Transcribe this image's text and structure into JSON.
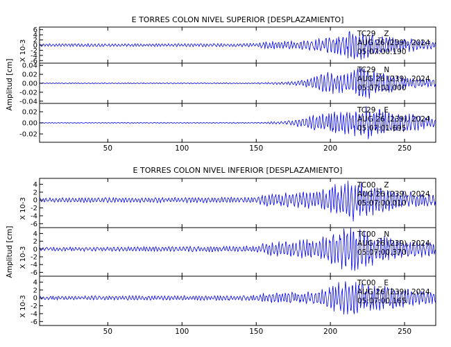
{
  "chart_data": [
    {
      "type": "line",
      "title": "E TORRES COLON NIVEL SUPERIOR [DESPLAZAMIENTO]",
      "ylabel": "Amplitud [cm]",
      "xlim": [
        4,
        271
      ],
      "xticks": [
        50,
        100,
        150,
        200,
        250
      ],
      "series_color": "#0000ee",
      "panels": [
        {
          "y_multiplier": "X 10-3",
          "ylim": [
            -7,
            7
          ],
          "yticks": [
            6,
            4,
            2,
            0,
            -2,
            -4,
            -6
          ],
          "ytick_labels": [
            "6",
            "4",
            "2",
            "0",
            "-2",
            "-4",
            "-6"
          ],
          "channel": "TC29 _ Z",
          "date": "AUG 26 (239), 2024",
          "time": "05:07:00.190",
          "envelope": [
            {
              "x": 4,
              "amp": 0.6
            },
            {
              "x": 100,
              "amp": 0.6
            },
            {
              "x": 150,
              "amp": 0.7
            },
            {
              "x": 155,
              "amp": 1.4
            },
            {
              "x": 180,
              "amp": 1.8
            },
            {
              "x": 190,
              "amp": 2.6
            },
            {
              "x": 205,
              "amp": 3.6
            },
            {
              "x": 215,
              "amp": 6.2
            },
            {
              "x": 225,
              "amp": 5.2
            },
            {
              "x": 240,
              "amp": 3.4
            },
            {
              "x": 260,
              "amp": 2.2
            },
            {
              "x": 271,
              "amp": 1.6
            }
          ]
        },
        {
          "y_multiplier": "",
          "ylim": [
            -0.045,
            0.045
          ],
          "yticks": [
            0.04,
            0.02,
            0.0,
            -0.02,
            -0.04
          ],
          "ytick_labels": [
            "0.04",
            "0.02",
            "0.00",
            "-0.02",
            "-0.04"
          ],
          "channel": "TC29 _ N",
          "date": "AUG 26 (239), 2024",
          "time": "05:07:01.000",
          "envelope": [
            {
              "x": 4,
              "amp": 0.0012
            },
            {
              "x": 150,
              "amp": 0.0015
            },
            {
              "x": 175,
              "amp": 0.004
            },
            {
              "x": 185,
              "amp": 0.01
            },
            {
              "x": 195,
              "amp": 0.026
            },
            {
              "x": 210,
              "amp": 0.022
            },
            {
              "x": 222,
              "amp": 0.038
            },
            {
              "x": 235,
              "amp": 0.026
            },
            {
              "x": 255,
              "amp": 0.012
            },
            {
              "x": 271,
              "amp": 0.008
            }
          ]
        },
        {
          "y_multiplier": "",
          "ylim": [
            -0.035,
            0.035
          ],
          "yticks": [
            0.02,
            0.0,
            -0.02
          ],
          "ytick_labels": [
            "0.02",
            "0.00",
            "-0.02"
          ],
          "channel": "TC29 _ E",
          "date": "AUG 26 (239), 2024",
          "time": "05:07:01.695",
          "envelope": [
            {
              "x": 4,
              "amp": 0.0008
            },
            {
              "x": 150,
              "amp": 0.001
            },
            {
              "x": 170,
              "amp": 0.003
            },
            {
              "x": 180,
              "amp": 0.008
            },
            {
              "x": 195,
              "amp": 0.018
            },
            {
              "x": 215,
              "amp": 0.024
            },
            {
              "x": 225,
              "amp": 0.03
            },
            {
              "x": 240,
              "amp": 0.022
            },
            {
              "x": 260,
              "amp": 0.014
            },
            {
              "x": 271,
              "amp": 0.01
            }
          ]
        }
      ]
    },
    {
      "type": "line",
      "title": "E TORRES COLON NIVEL INFERIOR [DESPLAZAMIENTO]",
      "ylabel": "Amplitud [cm]",
      "xlim": [
        4,
        271
      ],
      "xticks": [
        50,
        100,
        150,
        200,
        250
      ],
      "series_color": "#0000ee",
      "panels": [
        {
          "y_multiplier": "X 10-3",
          "ylim": [
            -7,
            5.5
          ],
          "yticks": [
            4,
            2,
            0,
            -2,
            -4,
            -6
          ],
          "ytick_labels": [
            "4",
            "2",
            "0",
            "-2",
            "-4",
            "-6"
          ],
          "channel": "TC00 _ Z",
          "date": "AUG 26 (239), 2024",
          "time": "05:07:00.010",
          "envelope": [
            {
              "x": 4,
              "amp": 0.6
            },
            {
              "x": 100,
              "amp": 0.7
            },
            {
              "x": 150,
              "amp": 0.8
            },
            {
              "x": 155,
              "amp": 1.5
            },
            {
              "x": 190,
              "amp": 2.2
            },
            {
              "x": 200,
              "amp": 3.4
            },
            {
              "x": 215,
              "amp": 5.4
            },
            {
              "x": 225,
              "amp": 4.0
            },
            {
              "x": 245,
              "amp": 2.4
            },
            {
              "x": 271,
              "amp": 1.4
            }
          ]
        },
        {
          "y_multiplier": "X 10-3",
          "ylim": [
            -7,
            5.5
          ],
          "yticks": [
            4,
            2,
            0,
            -2,
            -4,
            -6
          ],
          "ytick_labels": [
            "4",
            "2",
            "0",
            "-2",
            "-4",
            "-6"
          ],
          "channel": "TC00 _ N",
          "date": "AUG 26 (239), 2024",
          "time": "05:07:00.370",
          "envelope": [
            {
              "x": 4,
              "amp": 0.5
            },
            {
              "x": 100,
              "amp": 0.7
            },
            {
              "x": 150,
              "amp": 0.8
            },
            {
              "x": 155,
              "amp": 1.8
            },
            {
              "x": 190,
              "amp": 2.6
            },
            {
              "x": 200,
              "amp": 4.2
            },
            {
              "x": 215,
              "amp": 6.0
            },
            {
              "x": 225,
              "amp": 4.4
            },
            {
              "x": 245,
              "amp": 2.8
            },
            {
              "x": 271,
              "amp": 1.8
            }
          ]
        },
        {
          "y_multiplier": "X 10-3",
          "ylim": [
            -7,
            5.5
          ],
          "yticks": [
            4,
            2,
            0,
            -2,
            -4,
            -6
          ],
          "ytick_labels": [
            "4",
            "2",
            "0",
            "-2",
            "-4",
            "-6"
          ],
          "channel": "TC00 _ E",
          "date": "AUG 26 (239), 2024",
          "time": "05:07:00.165",
          "envelope": [
            {
              "x": 4,
              "amp": 0.5
            },
            {
              "x": 100,
              "amp": 0.6
            },
            {
              "x": 150,
              "amp": 0.7
            },
            {
              "x": 155,
              "amp": 1.2
            },
            {
              "x": 185,
              "amp": 1.6
            },
            {
              "x": 200,
              "amp": 3.0
            },
            {
              "x": 212,
              "amp": 5.0
            },
            {
              "x": 225,
              "amp": 4.2
            },
            {
              "x": 240,
              "amp": 3.0
            },
            {
              "x": 271,
              "amp": 1.4
            }
          ]
        }
      ]
    }
  ]
}
